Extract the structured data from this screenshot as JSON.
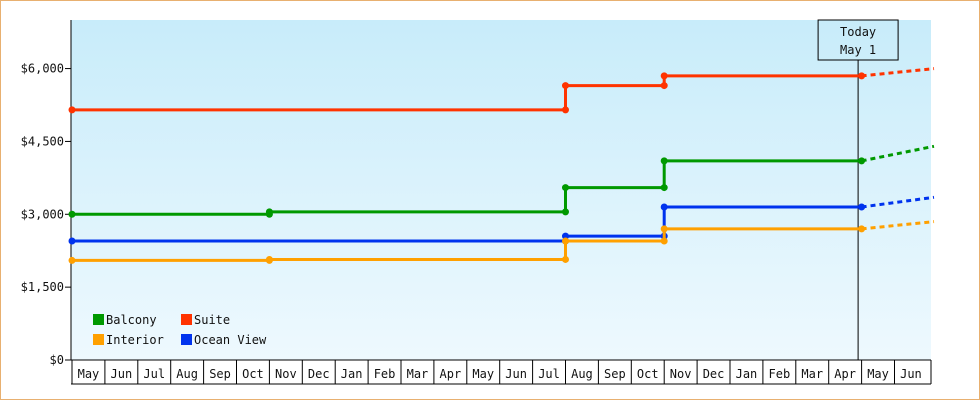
{
  "chart_data": {
    "type": "line",
    "title": "",
    "xlabel": "",
    "ylabel": "",
    "ylim": [
      0,
      7000
    ],
    "yticks": [
      0,
      1500,
      3000,
      4500,
      6000
    ],
    "ytick_labels": [
      "$0",
      "$1,500",
      "$3,000",
      "$4,500",
      "$6,000"
    ],
    "months": [
      "May",
      "Jun",
      "Jul",
      "Aug",
      "Sep",
      "Oct",
      "Nov",
      "Dec",
      "Jan",
      "Feb",
      "Mar",
      "Apr",
      "May",
      "Jun",
      "Jul",
      "Aug",
      "Sep",
      "Oct",
      "Nov",
      "Dec",
      "Jan",
      "Feb",
      "Mar",
      "Apr",
      "May",
      "Jun"
    ],
    "today_marker": {
      "line1": "Today",
      "line2": "May 1",
      "month_index": 24
    },
    "legend_position": "bottom-left",
    "grid": false,
    "series": [
      {
        "name": "Suite",
        "color": "#ff3300",
        "points": [
          [
            0,
            5150
          ],
          [
            15.0,
            5150
          ],
          [
            15.0,
            5650
          ],
          [
            18.0,
            5650
          ],
          [
            18.0,
            5850
          ],
          [
            24.0,
            5850
          ]
        ],
        "projection": [
          [
            24.0,
            5850
          ],
          [
            26.2,
            6000
          ]
        ]
      },
      {
        "name": "Balcony",
        "color": "#009900",
        "points": [
          [
            0,
            3000
          ],
          [
            6.0,
            3000
          ],
          [
            6.0,
            3050
          ],
          [
            15.0,
            3050
          ],
          [
            15.0,
            3550
          ],
          [
            18.0,
            3550
          ],
          [
            18.0,
            4100
          ],
          [
            24.0,
            4100
          ]
        ],
        "projection": [
          [
            24.0,
            4100
          ],
          [
            26.2,
            4400
          ]
        ]
      },
      {
        "name": "Ocean View",
        "color": "#0033ee",
        "points": [
          [
            0,
            2450
          ],
          [
            15.0,
            2450
          ],
          [
            15.0,
            2550
          ],
          [
            18.0,
            2550
          ],
          [
            18.0,
            3150
          ],
          [
            24.0,
            3150
          ]
        ],
        "projection": [
          [
            24.0,
            3150
          ],
          [
            26.2,
            3350
          ]
        ]
      },
      {
        "name": "Interior",
        "color": "#ffa000",
        "points": [
          [
            0,
            2050
          ],
          [
            6.0,
            2050
          ],
          [
            6.0,
            2070
          ],
          [
            15.0,
            2070
          ],
          [
            15.0,
            2450
          ],
          [
            18.0,
            2450
          ],
          [
            18.0,
            2700
          ],
          [
            24.0,
            2700
          ]
        ],
        "projection": [
          [
            24.0,
            2700
          ],
          [
            26.2,
            2850
          ]
        ]
      }
    ],
    "legend": [
      {
        "label": "Balcony",
        "color": "#009900"
      },
      {
        "label": "Suite",
        "color": "#ff3300"
      },
      {
        "label": "Interior",
        "color": "#ffa000"
      },
      {
        "label": "Ocean View",
        "color": "#0033ee"
      }
    ]
  }
}
